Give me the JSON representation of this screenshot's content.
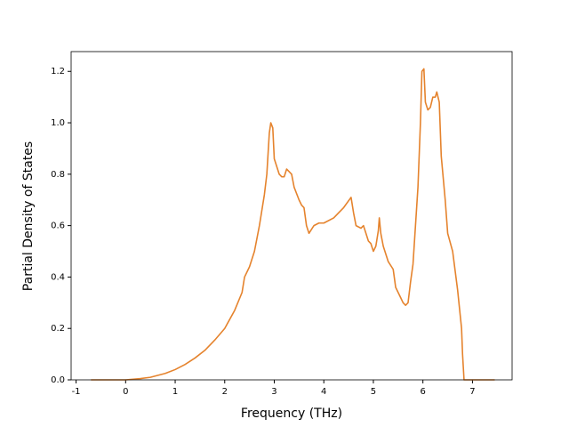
{
  "chart_data": {
    "type": "line",
    "x_label": "Frequency (THz)",
    "y_label": "Partial Density of States",
    "xlim": [
      -1.1,
      7.8
    ],
    "ylim": [
      0,
      1.277
    ],
    "xticks": [
      -1,
      0,
      1,
      2,
      3,
      4,
      5,
      6,
      7
    ],
    "yticks": [
      {
        "value": 0,
        "label": "0.0"
      },
      {
        "value": 0.2,
        "label": "0.2"
      },
      {
        "value": 0.4,
        "label": "0.4"
      },
      {
        "value": 0.6,
        "label": "0.6"
      },
      {
        "value": 0.8,
        "label": "0.8"
      },
      {
        "value": 1,
        "label": "1.0"
      },
      {
        "value": 1.2,
        "label": "1.2"
      }
    ],
    "x": [
      -0.7,
      0,
      0.3,
      0.5,
      0.8,
      1.0,
      1.2,
      1.4,
      1.6,
      1.8,
      2.0,
      2.2,
      2.35,
      2.4,
      2.5,
      2.6,
      2.7,
      2.8,
      2.85,
      2.9,
      2.93,
      2.97,
      3.0,
      3.1,
      3.15,
      3.2,
      3.25,
      3.35,
      3.4,
      3.5,
      3.55,
      3.6,
      3.65,
      3.7,
      3.8,
      3.9,
      4.0,
      4.2,
      4.4,
      4.55,
      4.6,
      4.65,
      4.75,
      4.8,
      4.85,
      4.9,
      4.95,
      5.0,
      5.05,
      5.1,
      5.12,
      5.15,
      5.2,
      5.3,
      5.4,
      5.45,
      5.55,
      5.6,
      5.65,
      5.7,
      5.75,
      5.8,
      5.85,
      5.9,
      5.95,
      5.98,
      6.02,
      6.05,
      6.1,
      6.15,
      6.2,
      6.25,
      6.28,
      6.33,
      6.37,
      6.45,
      6.5,
      6.6,
      6.7,
      6.78,
      6.8,
      6.83,
      7.45
    ],
    "series": [
      {
        "color": "#e5832d",
        "values": [
          0,
          0,
          0.005,
          0.01,
          0.025,
          0.04,
          0.06,
          0.085,
          0.115,
          0.155,
          0.2,
          0.27,
          0.34,
          0.4,
          0.44,
          0.5,
          0.6,
          0.72,
          0.8,
          0.96,
          1.0,
          0.98,
          0.86,
          0.8,
          0.79,
          0.79,
          0.82,
          0.8,
          0.75,
          0.7,
          0.68,
          0.67,
          0.6,
          0.57,
          0.6,
          0.61,
          0.61,
          0.63,
          0.67,
          0.71,
          0.65,
          0.6,
          0.59,
          0.6,
          0.57,
          0.54,
          0.53,
          0.5,
          0.52,
          0.58,
          0.63,
          0.57,
          0.52,
          0.46,
          0.43,
          0.36,
          0.32,
          0.3,
          0.29,
          0.3,
          0.38,
          0.45,
          0.6,
          0.75,
          1.0,
          1.2,
          1.21,
          1.08,
          1.05,
          1.06,
          1.1,
          1.1,
          1.12,
          1.08,
          0.87,
          0.7,
          0.57,
          0.5,
          0.35,
          0.2,
          0.1,
          0,
          0
        ]
      }
    ]
  }
}
